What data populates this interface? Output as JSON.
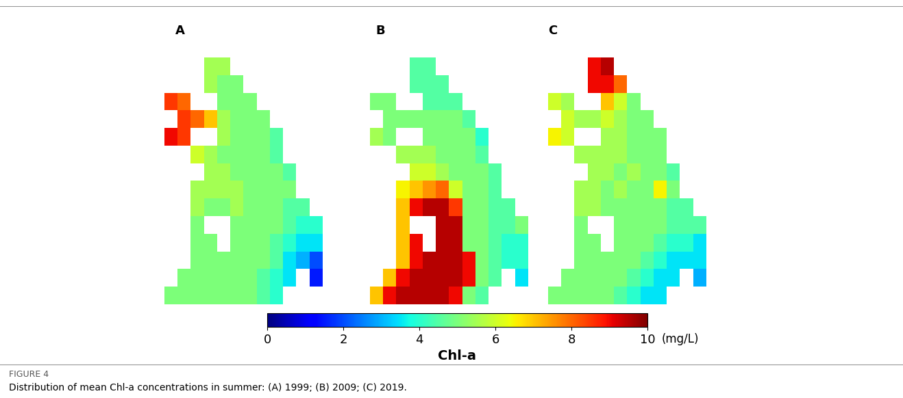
{
  "chart_data": {
    "type": "heatmap",
    "panels": [
      {
        "label": "A",
        "cells": [
          [
            null,
            null,
            null,
            5.5,
            5.5,
            null,
            null,
            null,
            null,
            null,
            null,
            null
          ],
          [
            null,
            null,
            null,
            5.5,
            5,
            5,
            null,
            null,
            null,
            null,
            null,
            null
          ],
          [
            8.5,
            8,
            null,
            null,
            5,
            5,
            5,
            null,
            null,
            null,
            null,
            null
          ],
          [
            null,
            8.5,
            8,
            7,
            5.5,
            5,
            5,
            5,
            null,
            null,
            null,
            null
          ],
          [
            9,
            8.5,
            null,
            null,
            5.5,
            5,
            5,
            5,
            4.5,
            null,
            null,
            null
          ],
          [
            null,
            null,
            6,
            5.5,
            5,
            5,
            5,
            5,
            4.5,
            null,
            null,
            null
          ],
          [
            null,
            null,
            null,
            5.5,
            5.5,
            5,
            5,
            5,
            5,
            4.5,
            null,
            null
          ],
          [
            null,
            null,
            5.5,
            5.5,
            5.5,
            5.5,
            5,
            5,
            5,
            5,
            null,
            null
          ],
          [
            null,
            null,
            5.5,
            5,
            5,
            5.5,
            5,
            5,
            5,
            4.5,
            4.5,
            null
          ],
          [
            null,
            null,
            5,
            null,
            null,
            5,
            5,
            5,
            5,
            4.5,
            4,
            4
          ],
          [
            null,
            null,
            5,
            5,
            null,
            5,
            5,
            5,
            4.5,
            4,
            3.5,
            3.5
          ],
          [
            null,
            null,
            5,
            5,
            5,
            5,
            5,
            5,
            4.5,
            3.5,
            3,
            2
          ],
          [
            null,
            5,
            5,
            5,
            5,
            5,
            5,
            4.5,
            4,
            3.5,
            null,
            1.5
          ],
          [
            5,
            5,
            5,
            5,
            5,
            5,
            5,
            4.5,
            4,
            null,
            null,
            null
          ]
        ]
      },
      {
        "label": "B",
        "cells": [
          [
            null,
            null,
            null,
            4.5,
            4.5,
            null,
            null,
            null,
            null,
            null,
            null,
            null
          ],
          [
            null,
            null,
            null,
            4.5,
            4.5,
            4.5,
            null,
            null,
            null,
            null,
            null,
            null
          ],
          [
            5,
            5,
            null,
            null,
            4.5,
            4.5,
            4.5,
            null,
            null,
            null,
            null,
            null
          ],
          [
            null,
            5,
            5,
            5,
            5,
            5,
            5,
            4.5,
            null,
            null,
            null,
            null
          ],
          [
            5.5,
            5,
            null,
            null,
            5,
            5,
            5,
            5,
            4,
            null,
            null,
            null
          ],
          [
            null,
            null,
            5.5,
            5.5,
            5.5,
            5,
            5,
            5,
            4.5,
            null,
            null,
            null
          ],
          [
            null,
            null,
            null,
            6,
            6,
            5.5,
            5,
            5,
            5,
            4.5,
            null,
            null
          ],
          [
            null,
            null,
            6.5,
            7,
            7.5,
            8,
            6,
            5,
            5,
            4.5,
            null,
            null
          ],
          [
            null,
            null,
            7,
            9,
            9.5,
            9.5,
            8.5,
            5,
            5,
            4.5,
            4.5,
            null
          ],
          [
            null,
            null,
            7,
            null,
            null,
            9.5,
            9.5,
            5,
            5,
            4.5,
            4.5,
            5
          ],
          [
            null,
            null,
            7,
            9,
            null,
            9.5,
            9.5,
            5,
            5,
            4.5,
            4,
            4
          ],
          [
            null,
            null,
            7,
            9,
            9.5,
            9.5,
            9.5,
            9,
            5,
            4.5,
            4,
            4
          ],
          [
            null,
            7,
            9,
            9.5,
            9.5,
            9.5,
            9.5,
            9,
            5,
            4.5,
            null,
            3.5
          ],
          [
            7,
            9,
            9.5,
            9.5,
            9.5,
            9.5,
            9,
            5,
            4.5,
            null,
            null,
            null
          ]
        ]
      },
      {
        "label": "C",
        "cells": [
          [
            null,
            null,
            null,
            9,
            9.5,
            null,
            null,
            null,
            null,
            null,
            null,
            null
          ],
          [
            null,
            null,
            null,
            9,
            9,
            8,
            null,
            null,
            null,
            null,
            null,
            null
          ],
          [
            6,
            5.5,
            null,
            null,
            7,
            6,
            5,
            null,
            null,
            null,
            null,
            null
          ],
          [
            null,
            6,
            5.5,
            5.5,
            6,
            5.5,
            5,
            5,
            null,
            null,
            null,
            null
          ],
          [
            6.5,
            6,
            null,
            null,
            5.5,
            5.5,
            5,
            5,
            5,
            null,
            null,
            null
          ],
          [
            null,
            null,
            5.5,
            5.5,
            5.5,
            5.5,
            5,
            5,
            5,
            null,
            null,
            null
          ],
          [
            null,
            null,
            null,
            5.5,
            5.5,
            5,
            5.5,
            5,
            5,
            4.5,
            null,
            null
          ],
          [
            null,
            null,
            5.5,
            5.5,
            5,
            5.5,
            5,
            5,
            6.5,
            5,
            null,
            null
          ],
          [
            null,
            null,
            5.5,
            5.5,
            5,
            5,
            5,
            5,
            5,
            4.5,
            4.5,
            null
          ],
          [
            null,
            null,
            5,
            null,
            null,
            5,
            5,
            5,
            5,
            4.5,
            4.5,
            4.5
          ],
          [
            null,
            null,
            5,
            5,
            null,
            5,
            5,
            5,
            4.5,
            4,
            4,
            3.5
          ],
          [
            null,
            null,
            5,
            5,
            5,
            5,
            5,
            4.5,
            4,
            3.5,
            3.5,
            3.5
          ],
          [
            null,
            5,
            5,
            5,
            5,
            5,
            4.5,
            4,
            3.5,
            3.5,
            null,
            3
          ],
          [
            5,
            5,
            5,
            5,
            5,
            4.5,
            4,
            3.5,
            3.5,
            null,
            null,
            null
          ]
        ]
      }
    ],
    "colorbar": {
      "range": [
        0,
        10
      ],
      "ticks": [
        0,
        2,
        4,
        6,
        8,
        10
      ],
      "label": "Chl-a",
      "unit": "(mg/L)"
    },
    "figure_label": "FIGURE 4",
    "caption": "Distribution of mean Chl-a concentrations in summer: (A) 1999; (B) 2009; (C) 2019."
  }
}
